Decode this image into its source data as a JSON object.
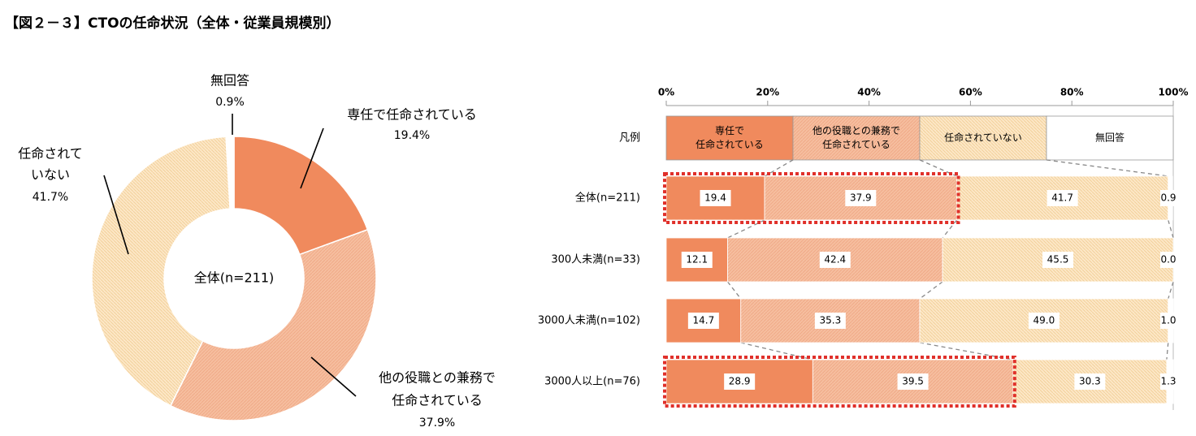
{
  "figure_title": "【図２－３】CTOの任命状況（全体・従業員規模別）",
  "colors": {
    "senin": "#F08A5D",
    "kenmu": "#F6BE9F",
    "not_appointed": "#FBE3BC",
    "no_answer": "#FFFFFF",
    "highlight": "#E0302A"
  },
  "chart_data": [
    {
      "type": "pie",
      "center_label": "全体(n=211)",
      "slices": [
        {
          "key": "senin",
          "label_lines": [
            "専任で任命されている"
          ],
          "value": 19.4,
          "display": "19.4%"
        },
        {
          "key": "kenmu",
          "label_lines": [
            "他の役職との兼務で",
            "任命されている"
          ],
          "value": 37.9,
          "display": "37.9%"
        },
        {
          "key": "not_appointed",
          "label_lines": [
            "任命されて",
            "いない"
          ],
          "value": 41.7,
          "display": "41.7%"
        },
        {
          "key": "no_answer",
          "label_lines": [
            "無回答"
          ],
          "value": 0.9,
          "display": "0.9%"
        }
      ]
    },
    {
      "type": "bar",
      "orientation": "horizontal",
      "stacked": true,
      "x_ticks": [
        "0%",
        "20%",
        "40%",
        "60%",
        "80%",
        "100%"
      ],
      "xlim": [
        0,
        100
      ],
      "legend_row": {
        "label": "凡例",
        "segments": [
          {
            "key": "senin",
            "lines": [
              "専任で",
              "任命されている"
            ]
          },
          {
            "key": "kenmu",
            "lines": [
              "他の役職との兼務で",
              "任命されている"
            ]
          },
          {
            "key": "not_appointed",
            "lines": [
              "任命されていない"
            ]
          },
          {
            "key": "no_answer",
            "lines": [
              "無回答"
            ]
          }
        ]
      },
      "categories": [
        "全体(n=211)",
        "300人未満(n=33)",
        "3000人未満(n=102)",
        "3000人以上(n=76)"
      ],
      "highlighted_rows": [
        0,
        3
      ],
      "series": [
        {
          "key": "senin",
          "values": [
            19.4,
            12.1,
            14.7,
            28.9
          ],
          "labels": [
            "19.4",
            "12.1",
            "14.7",
            "28.9"
          ]
        },
        {
          "key": "kenmu",
          "values": [
            37.9,
            42.4,
            35.3,
            39.5
          ],
          "labels": [
            "37.9",
            "42.4",
            "35.3",
            "39.5"
          ]
        },
        {
          "key": "not_appointed",
          "values": [
            41.7,
            45.5,
            49.0,
            30.3
          ],
          "labels": [
            "41.7",
            "45.5",
            "49.0",
            "30.3"
          ]
        },
        {
          "key": "no_answer",
          "values": [
            0.9,
            0.0,
            1.0,
            1.3
          ],
          "labels": [
            "0.9",
            "0.0",
            "1.0",
            "1.3"
          ]
        }
      ]
    }
  ]
}
